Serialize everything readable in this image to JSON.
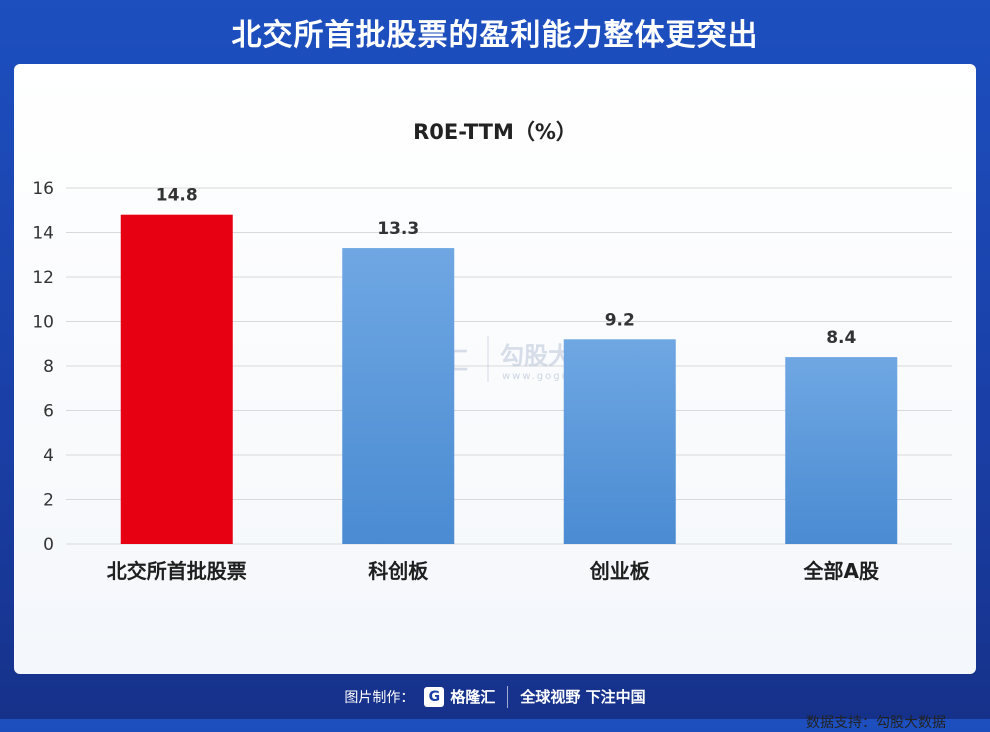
{
  "banner": {
    "title": "北交所首批股票的盈利能力整体更突出"
  },
  "chart_data": {
    "type": "bar",
    "title": "R0E-TTM（%）",
    "categories": [
      "北交所首批股票",
      "科创板",
      "创业板",
      "全部A股"
    ],
    "values": [
      14.8,
      13.3,
      9.2,
      8.4
    ],
    "value_labels": [
      "14.8",
      "13.3",
      "9.2",
      "8.4"
    ],
    "ylim": [
      0,
      16
    ],
    "yticks": [
      0,
      2,
      4,
      6,
      8,
      10,
      12,
      14,
      16
    ],
    "grid": true,
    "legend": "none",
    "colors": {
      "highlight": "#e60012",
      "bar": "#4a8bd2",
      "bar_top": "#6fa7e3",
      "grid": "#d9d9d9"
    }
  },
  "watermark": {
    "brand_left": "格隆汇",
    "brand_right": "勾股大数据",
    "url": "www.gogudata.com"
  },
  "source_note": "数据支持：勾股大数据",
  "footer": {
    "prefix": "图片制作：",
    "logo_icon": "G",
    "brand": "格隆汇",
    "slogan": "全球视野 下注中国"
  }
}
